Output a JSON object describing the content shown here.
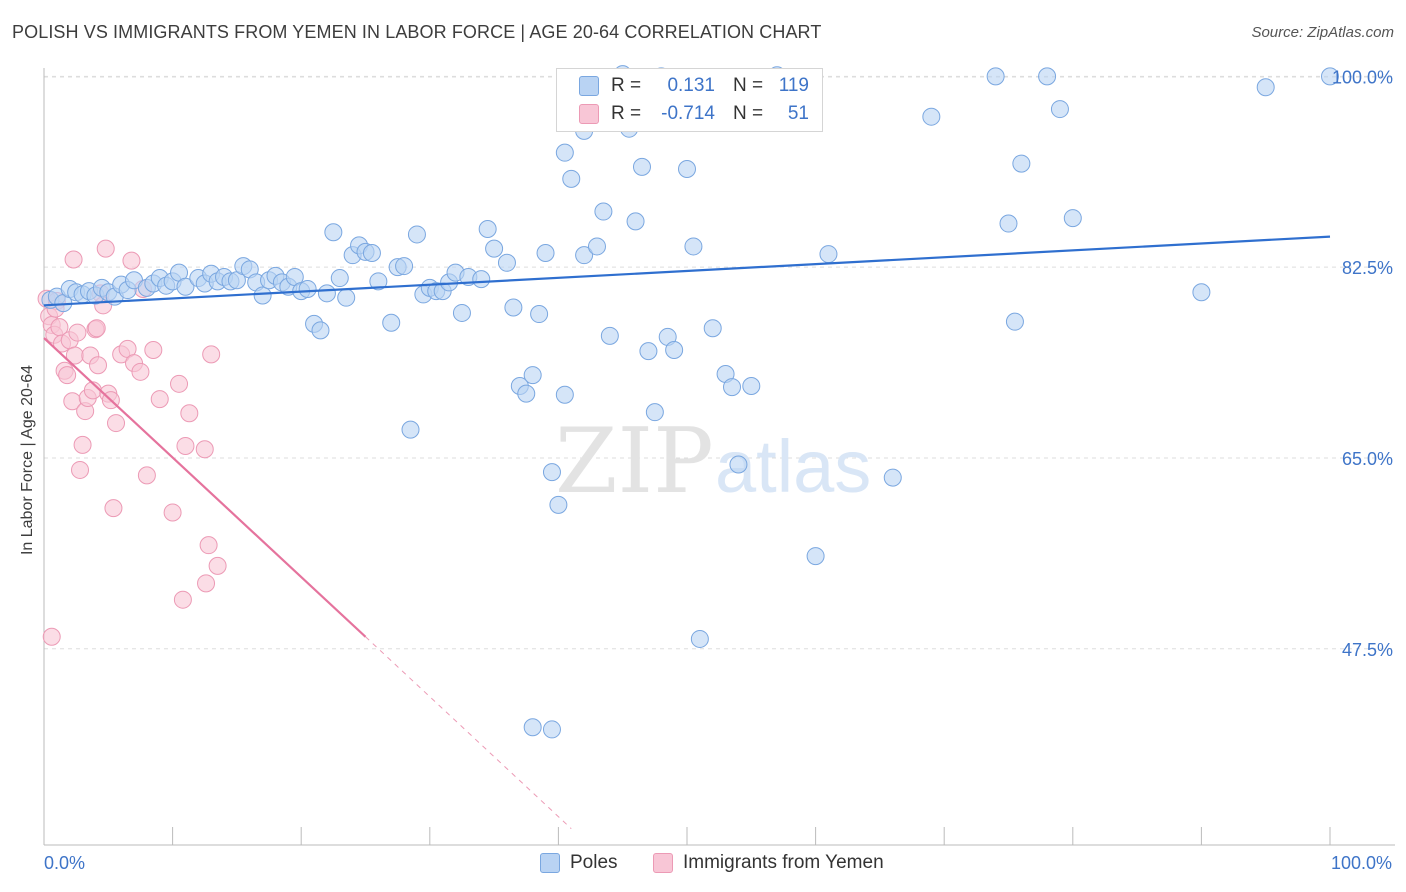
{
  "title": "POLISH VS IMMIGRANTS FROM YEMEN IN LABOR FORCE | AGE 20-64 CORRELATION CHART",
  "source": "Source: ZipAtlas.com",
  "watermark": {
    "zip": "ZIP",
    "atlas": "atlas"
  },
  "legend": {
    "rows": [
      {
        "r_label": "R =",
        "r_value": "0.131",
        "n_label": "N =",
        "n_value": "119"
      },
      {
        "r_label": "R =",
        "r_value": "-0.714",
        "n_label": "N =",
        "n_value": "51"
      }
    ]
  },
  "bottom_legend": {
    "poles": "Poles",
    "yemen": "Immigrants from Yemen"
  },
  "colors": {
    "poles_fill": "#b9d3f3",
    "poles_stroke": "#7aa7e0",
    "poles_line": "#2f6fcf",
    "yemen_fill": "#f8c6d6",
    "yemen_stroke": "#ec9ab5",
    "yemen_line": "#e5739d",
    "tick_text": "#3e74c8",
    "grid": "#dddddd"
  },
  "chart_data": {
    "type": "scatter",
    "title": "POLISH VS IMMIGRANTS FROM YEMEN IN LABOR FORCE | AGE 20-64 CORRELATION CHART",
    "xlabel": "",
    "ylabel": "In Labor Force | Age 20-64",
    "xlim": [
      0,
      100
    ],
    "ylim": [
      29.5,
      101.5
    ],
    "x_tick_labels": [
      "0.0%",
      "100.0%"
    ],
    "y_ticks": [
      47.5,
      65.0,
      82.5,
      100.0
    ],
    "y_tick_labels": [
      "47.5%",
      "65.0%",
      "82.5%",
      "100.0%"
    ],
    "grid": true,
    "legend_position": "top-center",
    "series": [
      {
        "name": "Poles",
        "r": 0.131,
        "n": 119,
        "trend": {
          "x": [
            0,
            100
          ],
          "y": [
            79.0,
            85.3
          ]
        },
        "points": [
          [
            0.5,
            79.5
          ],
          [
            1,
            79.8
          ],
          [
            1.5,
            79.2
          ],
          [
            2,
            80.5
          ],
          [
            2.5,
            80.2
          ],
          [
            3,
            80.0
          ],
          [
            3.5,
            80.3
          ],
          [
            4,
            79.9
          ],
          [
            4.5,
            80.6
          ],
          [
            5,
            80.2
          ],
          [
            5.5,
            79.8
          ],
          [
            6,
            80.9
          ],
          [
            6.5,
            80.4
          ],
          [
            7,
            81.3
          ],
          [
            8,
            80.6
          ],
          [
            8.5,
            81.0
          ],
          [
            9,
            81.5
          ],
          [
            9.5,
            80.8
          ],
          [
            10,
            81.2
          ],
          [
            10.5,
            82.0
          ],
          [
            11,
            80.7
          ],
          [
            12,
            81.5
          ],
          [
            12.5,
            81.0
          ],
          [
            13,
            81.9
          ],
          [
            13.5,
            81.2
          ],
          [
            14,
            81.6
          ],
          [
            14.5,
            81.2
          ],
          [
            15,
            81.3
          ],
          [
            15.5,
            82.6
          ],
          [
            16,
            82.3
          ],
          [
            16.5,
            81.1
          ],
          [
            17,
            79.9
          ],
          [
            17.5,
            81.3
          ],
          [
            18,
            81.7
          ],
          [
            18.5,
            81.1
          ],
          [
            19,
            80.7
          ],
          [
            19.5,
            81.6
          ],
          [
            20,
            80.3
          ],
          [
            20.5,
            80.5
          ],
          [
            21,
            77.3
          ],
          [
            21.5,
            76.7
          ],
          [
            22,
            80.1
          ],
          [
            22.5,
            85.7
          ],
          [
            23,
            81.5
          ],
          [
            23.5,
            79.7
          ],
          [
            24,
            83.6
          ],
          [
            24.5,
            84.5
          ],
          [
            25,
            83.9
          ],
          [
            25.5,
            83.8
          ],
          [
            26,
            81.2
          ],
          [
            27,
            77.4
          ],
          [
            27.5,
            82.5
          ],
          [
            28,
            82.6
          ],
          [
            28.5,
            67.6
          ],
          [
            29,
            85.5
          ],
          [
            29.5,
            80.0
          ],
          [
            30,
            80.6
          ],
          [
            30.5,
            80.3
          ],
          [
            31,
            80.3
          ],
          [
            31.5,
            81.1
          ],
          [
            32,
            82.0
          ],
          [
            32.5,
            78.3
          ],
          [
            33,
            81.6
          ],
          [
            34,
            81.4
          ],
          [
            34.5,
            86.0
          ],
          [
            35,
            84.2
          ],
          [
            36,
            82.9
          ],
          [
            36.5,
            78.8
          ],
          [
            37,
            71.6
          ],
          [
            37.5,
            70.9
          ],
          [
            38,
            72.6
          ],
          [
            38.5,
            78.2
          ],
          [
            39,
            83.8
          ],
          [
            39.5,
            63.7
          ],
          [
            40,
            60.7
          ],
          [
            40.5,
            70.8
          ],
          [
            41,
            90.6
          ],
          [
            42,
            83.6
          ],
          [
            42.5,
            97.9
          ],
          [
            43,
            84.4
          ],
          [
            43.5,
            87.6
          ],
          [
            44,
            76.2
          ],
          [
            45,
            100.2
          ],
          [
            45.5,
            95.2
          ],
          [
            46,
            86.7
          ],
          [
            46.5,
            91.7
          ],
          [
            47,
            74.8
          ],
          [
            47.5,
            69.2
          ],
          [
            48,
            100.0
          ],
          [
            48.5,
            76.1
          ],
          [
            49,
            74.9
          ],
          [
            50,
            91.5
          ],
          [
            50.5,
            84.4
          ],
          [
            51,
            48.4
          ],
          [
            52,
            76.9
          ],
          [
            53,
            72.7
          ],
          [
            53.5,
            71.5
          ],
          [
            54,
            64.4
          ],
          [
            55,
            71.6
          ],
          [
            56,
            99.9
          ],
          [
            57,
            100.1
          ],
          [
            60,
            56.0
          ],
          [
            61,
            83.7
          ],
          [
            66,
            63.2
          ],
          [
            69,
            96.3
          ],
          [
            74,
            100.0
          ],
          [
            75,
            86.5
          ],
          [
            75.5,
            77.5
          ],
          [
            76,
            92.0
          ],
          [
            78,
            100.0
          ],
          [
            79,
            97.0
          ],
          [
            80,
            87.0
          ],
          [
            90,
            80.2
          ],
          [
            95,
            99.0
          ],
          [
            100,
            100.0
          ],
          [
            38,
            40.3
          ],
          [
            39.5,
            40.1
          ],
          [
            40.5,
            93.0
          ],
          [
            42,
            95.0
          ]
        ]
      },
      {
        "name": "Immigrants from Yemen",
        "r": -0.714,
        "n": 51,
        "trend": {
          "x": [
            0,
            25
          ],
          "y": [
            76.0,
            48.6
          ]
        },
        "trend_dashed": {
          "x": [
            25,
            41
          ],
          "y": [
            48.6,
            31.0
          ]
        },
        "points": [
          [
            0.2,
            79.6
          ],
          [
            0.4,
            78.0
          ],
          [
            0.6,
            77.2
          ],
          [
            0.8,
            76.3
          ],
          [
            1.0,
            79.4
          ],
          [
            1.2,
            77.0
          ],
          [
            1.4,
            75.5
          ],
          [
            1.6,
            73.0
          ],
          [
            1.8,
            72.6
          ],
          [
            2.0,
            75.8
          ],
          [
            2.2,
            70.2
          ],
          [
            2.4,
            74.4
          ],
          [
            2.6,
            76.5
          ],
          [
            2.8,
            63.9
          ],
          [
            3.0,
            66.2
          ],
          [
            3.2,
            69.3
          ],
          [
            3.4,
            70.5
          ],
          [
            3.6,
            74.4
          ],
          [
            3.8,
            71.2
          ],
          [
            4.0,
            76.8
          ],
          [
            4.2,
            73.5
          ],
          [
            4.4,
            80.1
          ],
          [
            4.6,
            79.0
          ],
          [
            4.8,
            84.2
          ],
          [
            5.0,
            70.9
          ],
          [
            5.2,
            70.3
          ],
          [
            5.4,
            60.4
          ],
          [
            5.6,
            68.2
          ],
          [
            6.0,
            74.5
          ],
          [
            6.5,
            75.0
          ],
          [
            7.0,
            73.7
          ],
          [
            7.5,
            72.9
          ],
          [
            8.0,
            63.4
          ],
          [
            8.5,
            74.9
          ],
          [
            9.0,
            70.4
          ],
          [
            10.0,
            60.0
          ],
          [
            10.5,
            71.8
          ],
          [
            11.0,
            66.1
          ],
          [
            11.3,
            69.1
          ],
          [
            12.5,
            65.8
          ],
          [
            13.0,
            74.5
          ],
          [
            12.8,
            57.0
          ],
          [
            12.6,
            53.5
          ],
          [
            13.5,
            55.1
          ],
          [
            10.8,
            52.0
          ],
          [
            6.8,
            83.1
          ],
          [
            7.7,
            80.5
          ],
          [
            4.1,
            76.9
          ],
          [
            2.3,
            83.2
          ],
          [
            0.9,
            78.7
          ],
          [
            0.6,
            48.6
          ]
        ]
      }
    ]
  }
}
